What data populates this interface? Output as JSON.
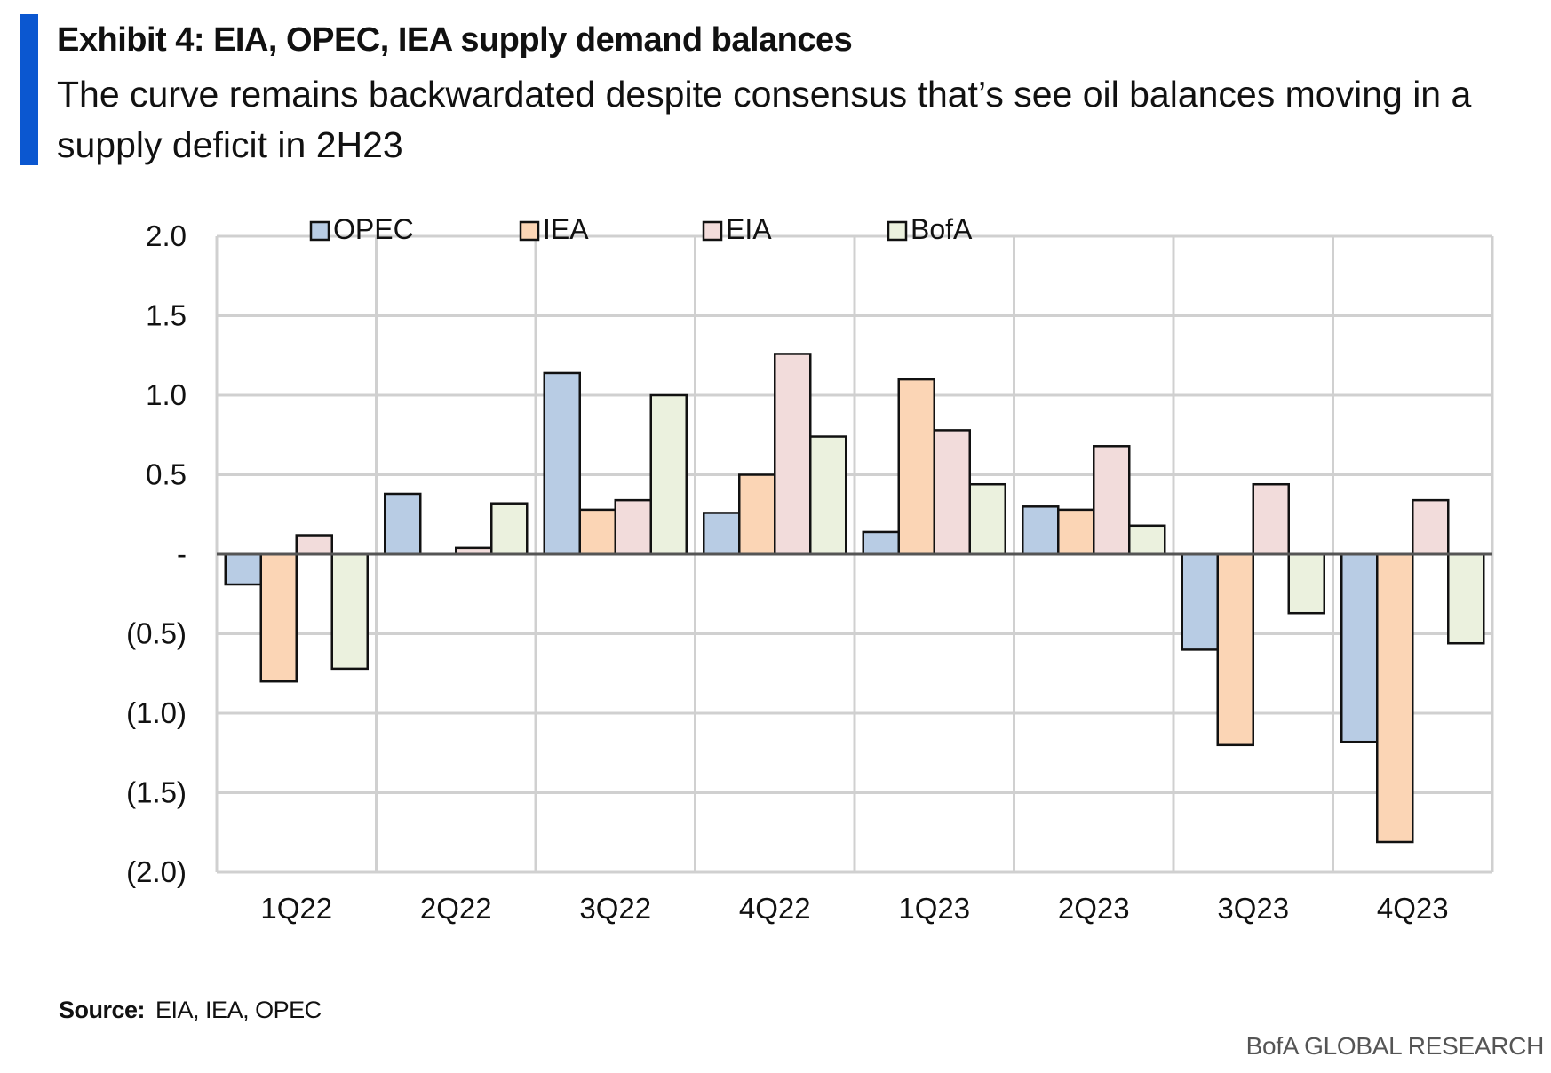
{
  "header": {
    "title": "Exhibit 4: EIA, OPEC, IEA supply demand balances",
    "subtitle": "The curve remains backwardated despite consensus that’s see oil balances moving in a supply deficit in 2H23"
  },
  "colors": {
    "accent": "#0b57d0",
    "grid": "#d0d0d0",
    "series": [
      "#b8cce4",
      "#fbd5b5",
      "#f2dcdb",
      "#ebf1de"
    ]
  },
  "chart_data": {
    "type": "bar",
    "categories": [
      "1Q22",
      "2Q22",
      "3Q22",
      "4Q22",
      "1Q23",
      "2Q23",
      "3Q23",
      "4Q23"
    ],
    "series": [
      {
        "name": "OPEC",
        "values": [
          -0.19,
          0.38,
          1.14,
          0.26,
          0.14,
          0.3,
          -0.6,
          -1.18
        ]
      },
      {
        "name": "IEA",
        "values": [
          -0.8,
          0.0,
          0.28,
          0.5,
          1.1,
          0.28,
          -1.2,
          -1.81
        ]
      },
      {
        "name": "EIA",
        "values": [
          0.12,
          0.04,
          0.34,
          1.26,
          0.78,
          0.68,
          0.44,
          0.34
        ]
      },
      {
        "name": "BofA",
        "values": [
          -0.72,
          0.32,
          1.0,
          0.74,
          0.44,
          0.18,
          -0.37,
          -0.56
        ]
      }
    ],
    "yticks": [
      2.0,
      1.5,
      1.0,
      0.5,
      0,
      -0.5,
      -1.0,
      -1.5,
      -2.0
    ],
    "ytick_labels": [
      "2.0",
      "1.5",
      "1.0",
      "0.5",
      "-",
      "(0.5)",
      "(1.0)",
      "(1.5)",
      "(2.0)"
    ],
    "ylim": [
      -2.0,
      2.0
    ],
    "grid": true,
    "legend_position": "top"
  },
  "footer": {
    "source_label": "Source:",
    "source_text": "EIA, IEA, OPEC",
    "brand": "BofA GLOBAL RESEARCH"
  }
}
